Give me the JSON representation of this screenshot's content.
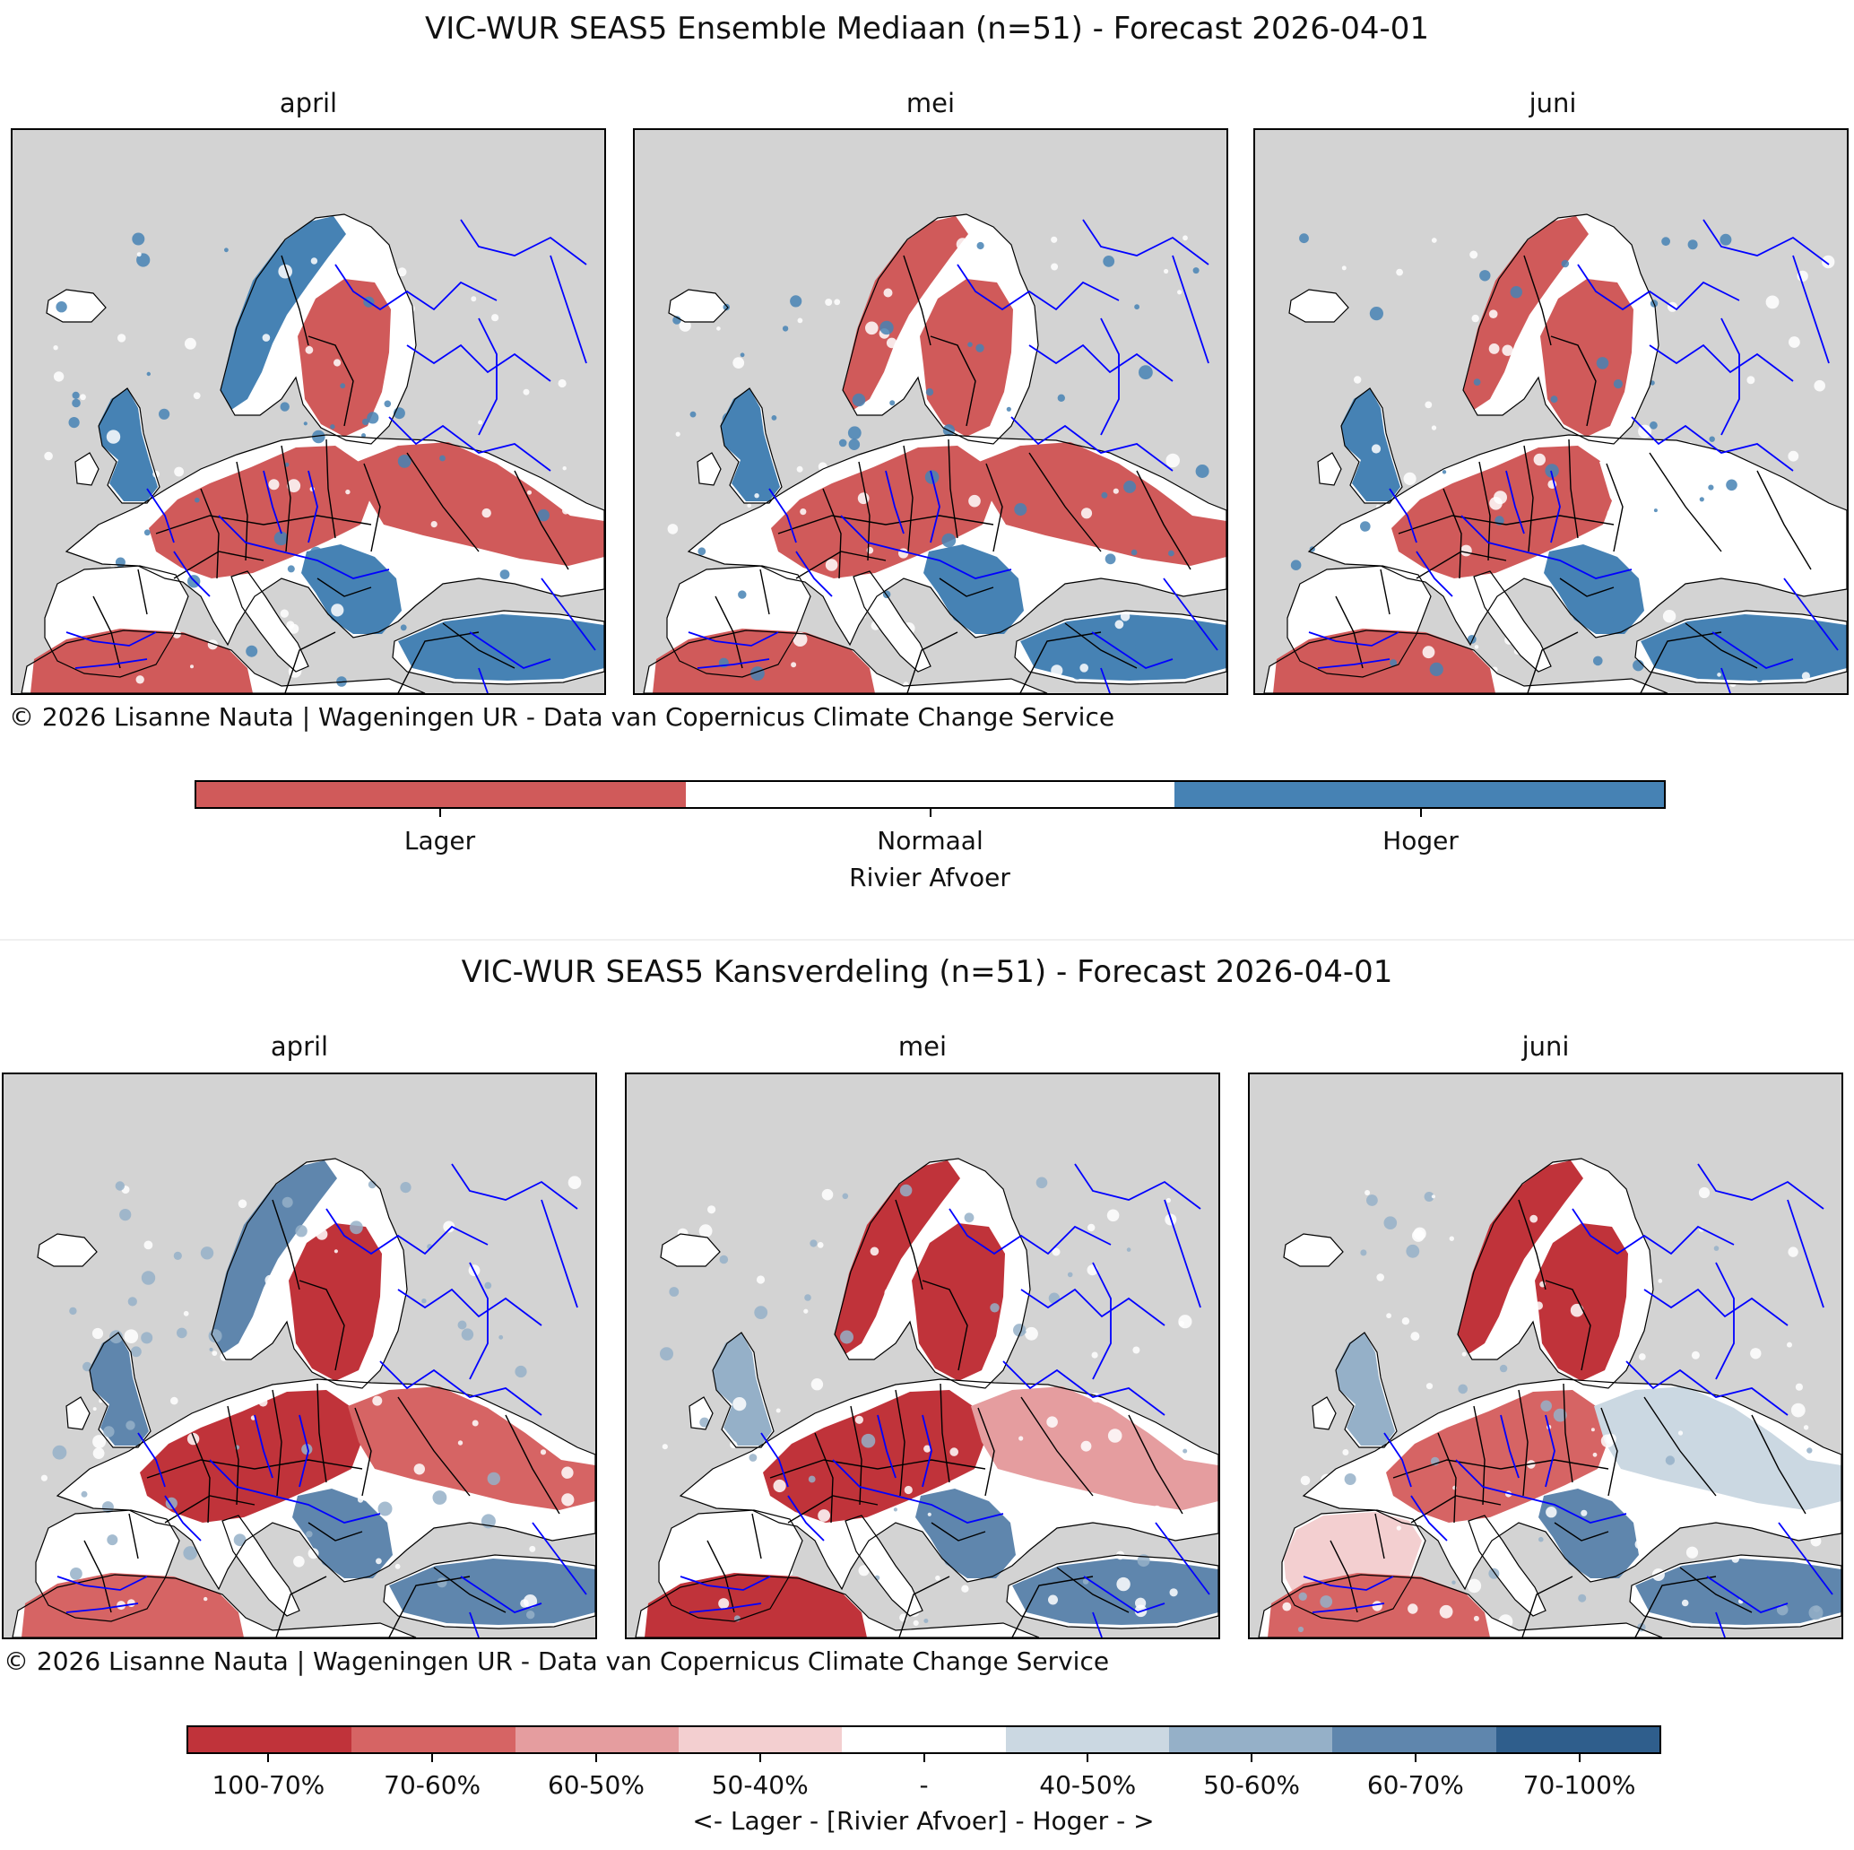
{
  "top": {
    "title": "VIC-WUR SEAS5 Ensemble Mediaan (n=51) - Forecast 2026-04-01",
    "months": [
      "april",
      "mei",
      "juni"
    ],
    "credit": "© 2026 Lisanne Nauta | Wageningen UR - Data van Copernicus Climate Change Service",
    "legend": {
      "ticks": [
        "Lager",
        "Normaal",
        "Hoger"
      ],
      "label": "Rivier Afvoer",
      "colors": [
        "#d05a5a",
        "#ffffff",
        "#4682b4"
      ]
    }
  },
  "bottom": {
    "title": "VIC-WUR SEAS5 Kansverdeling (n=51) - Forecast 2026-04-01",
    "months": [
      "april",
      "mei",
      "juni"
    ],
    "credit": "© 2026 Lisanne Nauta | Wageningen UR - Data van Copernicus Climate Change Service",
    "legend": {
      "ticks": [
        "100-70%",
        "70-60%",
        "60-50%",
        "50-40%",
        "-",
        "40-50%",
        "50-60%",
        "60-70%",
        "70-100%"
      ],
      "label": "<- Lager - [Rivier Afvoer] - Hoger - >",
      "colors": [
        "#c0333a",
        "#d66464",
        "#e59d9f",
        "#f3cfd0",
        "#ffffff",
        "#cbd8e2",
        "#95b0c8",
        "#5f86ad",
        "#2f5e8c"
      ]
    }
  },
  "map_colors": {
    "ocean": "#d3d3d3",
    "land": "#ffffff",
    "borders": "#000000",
    "rivers": "#0000ff"
  },
  "region_classes": {
    "top": {
      "april": {
        "scand_west": "hoger",
        "scand_east": "lager",
        "british": "hoger",
        "iberia": "normaal",
        "central": "lager",
        "balkans": "hoger",
        "east": "lager",
        "turkey": "hoger",
        "north_africa": "lager"
      },
      "mei": {
        "scand_west": "lager",
        "scand_east": "lager",
        "british": "hoger",
        "iberia": "normaal",
        "central": "lager",
        "balkans": "hoger",
        "east": "lager",
        "turkey": "hoger",
        "north_africa": "lager"
      },
      "juni": {
        "scand_west": "lager",
        "scand_east": "lager",
        "british": "hoger",
        "iberia": "normaal",
        "central": "lager",
        "balkans": "hoger",
        "east": "normaal",
        "turkey": "hoger",
        "north_africa": "lager"
      }
    },
    "bottom": {
      "april": {
        "scand_west": "7",
        "scand_east": "0",
        "british": "7",
        "iberia": "4",
        "central": "0",
        "balkans": "7",
        "east": "1",
        "turkey": "7",
        "north_africa": "1"
      },
      "mei": {
        "scand_west": "0",
        "scand_east": "0",
        "british": "6",
        "iberia": "4",
        "central": "0",
        "balkans": "7",
        "east": "2",
        "turkey": "7",
        "north_africa": "0"
      },
      "juni": {
        "scand_west": "0",
        "scand_east": "0",
        "british": "6",
        "iberia": "3",
        "central": "1",
        "balkans": "7",
        "east": "5",
        "turkey": "7",
        "north_africa": "1"
      }
    }
  }
}
